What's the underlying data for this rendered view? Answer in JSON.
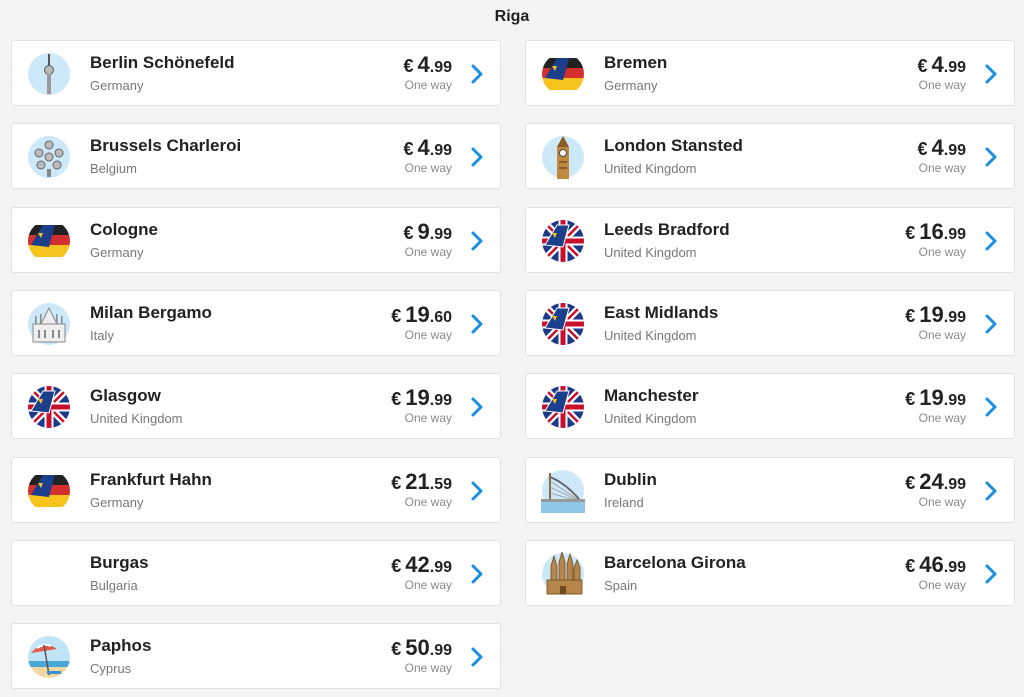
{
  "header": {
    "title": "Riga"
  },
  "accent_color": "#1a8fe0",
  "routes": [
    {
      "city": "Berlin Schönefeld",
      "country": "Germany",
      "currency": "€",
      "price_main": "4",
      "price_cents": ".99",
      "label": "One way",
      "icon": "berlin-tv-tower-icon"
    },
    {
      "city": "Bremen",
      "country": "Germany",
      "currency": "€",
      "price_main": "4",
      "price_cents": ".99",
      "label": "One way",
      "icon": "germany-tail-icon"
    },
    {
      "city": "Brussels Charleroi",
      "country": "Belgium",
      "currency": "€",
      "price_main": "4",
      "price_cents": ".99",
      "label": "One way",
      "icon": "atomium-icon"
    },
    {
      "city": "London Stansted",
      "country": "United Kingdom",
      "currency": "€",
      "price_main": "4",
      "price_cents": ".99",
      "label": "One way",
      "icon": "big-ben-icon"
    },
    {
      "city": "Cologne",
      "country": "Germany",
      "currency": "€",
      "price_main": "9",
      "price_cents": ".99",
      "label": "One way",
      "icon": "germany-tail-icon"
    },
    {
      "city": "Leeds Bradford",
      "country": "United Kingdom",
      "currency": "€",
      "price_main": "16",
      "price_cents": ".99",
      "label": "One way",
      "icon": "uk-tail-icon"
    },
    {
      "city": "Milan Bergamo",
      "country": "Italy",
      "currency": "€",
      "price_main": "19",
      "price_cents": ".60",
      "label": "One way",
      "icon": "milan-cathedral-icon"
    },
    {
      "city": "East Midlands",
      "country": "United Kingdom",
      "currency": "€",
      "price_main": "19",
      "price_cents": ".99",
      "label": "One way",
      "icon": "uk-tail-icon"
    },
    {
      "city": "Glasgow",
      "country": "United Kingdom",
      "currency": "€",
      "price_main": "19",
      "price_cents": ".99",
      "label": "One way",
      "icon": "uk-tail-icon"
    },
    {
      "city": "Manchester",
      "country": "United Kingdom",
      "currency": "€",
      "price_main": "19",
      "price_cents": ".99",
      "label": "One way",
      "icon": "uk-tail-icon"
    },
    {
      "city": "Frankfurt Hahn",
      "country": "Germany",
      "currency": "€",
      "price_main": "21",
      "price_cents": ".59",
      "label": "One way",
      "icon": "germany-tail-icon"
    },
    {
      "city": "Dublin",
      "country": "Ireland",
      "currency": "€",
      "price_main": "24",
      "price_cents": ".99",
      "label": "One way",
      "icon": "dublin-spire-bridge-icon"
    },
    {
      "city": "Burgas",
      "country": "Bulgaria",
      "currency": "€",
      "price_main": "42",
      "price_cents": ".99",
      "label": "One way",
      "icon": ""
    },
    {
      "city": "Barcelona Girona",
      "country": "Spain",
      "currency": "€",
      "price_main": "46",
      "price_cents": ".99",
      "label": "One way",
      "icon": "sagrada-familia-icon"
    },
    {
      "city": "Paphos",
      "country": "Cyprus",
      "currency": "€",
      "price_main": "50",
      "price_cents": ".99",
      "label": "One way",
      "icon": "beach-umbrella-icon"
    }
  ]
}
